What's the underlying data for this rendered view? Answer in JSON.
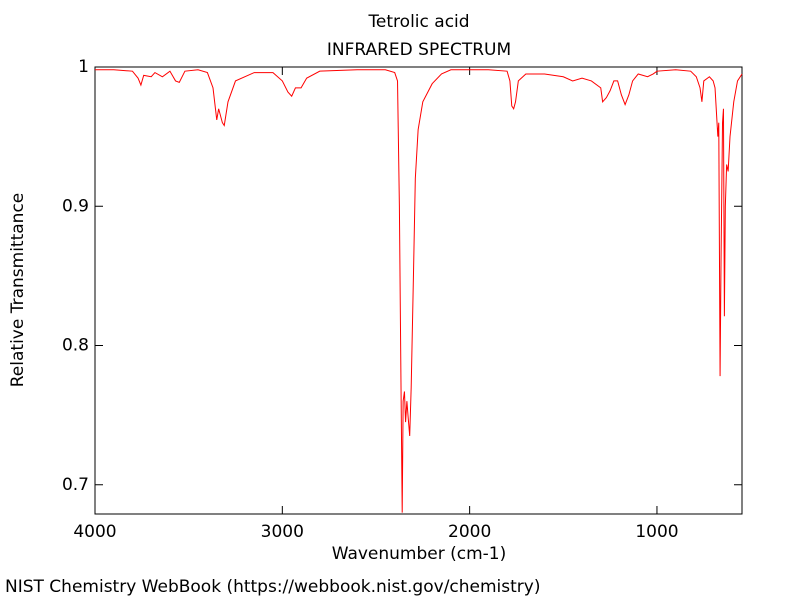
{
  "chart_data": {
    "type": "line",
    "title": "Tetrolic acid",
    "subtitle": "INFRARED SPECTRUM",
    "x_label": "Wavenumber (cm-1)",
    "y_label": "Relative Transmittance",
    "credit": "NIST Chemistry WebBook (https://webbook.nist.gov/chemistry)",
    "xlim": [
      4000,
      546
    ],
    "ylim": [
      0.679,
      1
    ],
    "xticks": [
      4000,
      3000,
      2000,
      1000
    ],
    "yticks": [
      0.7,
      0.8,
      0.9,
      1
    ],
    "x": [
      4000,
      3900,
      3800,
      3770,
      3755,
      3740,
      3700,
      3680,
      3640,
      3600,
      3570,
      3550,
      3520,
      3450,
      3400,
      3370,
      3350,
      3340,
      3320,
      3310,
      3290,
      3250,
      3150,
      3050,
      3000,
      2970,
      2950,
      2930,
      2900,
      2870,
      2800,
      2600,
      2450,
      2400,
      2385,
      2375,
      2367,
      2360,
      2355,
      2348,
      2342,
      2335,
      2328,
      2320,
      2312,
      2300,
      2290,
      2275,
      2250,
      2200,
      2150,
      2100,
      1900,
      1800,
      1785,
      1775,
      1765,
      1755,
      1740,
      1700,
      1600,
      1500,
      1450,
      1400,
      1350,
      1300,
      1290,
      1270,
      1250,
      1230,
      1210,
      1190,
      1170,
      1150,
      1130,
      1100,
      1050,
      1020,
      1000,
      900,
      820,
      790,
      770,
      760,
      750,
      720,
      700,
      690,
      675,
      670,
      663,
      658,
      650,
      645,
      640,
      635,
      628,
      620,
      610,
      590,
      570,
      546
    ],
    "series": [
      {
        "name": "Tetrolic acid",
        "color": "#ff0000",
        "values": [
          0.998,
          0.998,
          0.997,
          0.992,
          0.987,
          0.994,
          0.993,
          0.996,
          0.993,
          0.997,
          0.99,
          0.989,
          0.997,
          0.998,
          0.996,
          0.985,
          0.962,
          0.97,
          0.96,
          0.958,
          0.975,
          0.99,
          0.996,
          0.996,
          0.99,
          0.982,
          0.979,
          0.985,
          0.985,
          0.992,
          0.997,
          0.998,
          0.998,
          0.996,
          0.99,
          0.9,
          0.78,
          0.68,
          0.76,
          0.767,
          0.745,
          0.76,
          0.748,
          0.735,
          0.77,
          0.85,
          0.92,
          0.955,
          0.975,
          0.988,
          0.995,
          0.998,
          0.998,
          0.997,
          0.99,
          0.972,
          0.97,
          0.975,
          0.99,
          0.995,
          0.995,
          0.993,
          0.99,
          0.992,
          0.99,
          0.985,
          0.975,
          0.978,
          0.983,
          0.99,
          0.99,
          0.98,
          0.973,
          0.98,
          0.99,
          0.995,
          0.993,
          0.995,
          0.997,
          0.998,
          0.997,
          0.993,
          0.985,
          0.975,
          0.99,
          0.993,
          0.99,
          0.985,
          0.95,
          0.96,
          0.778,
          0.86,
          0.96,
          0.97,
          0.821,
          0.9,
          0.93,
          0.925,
          0.95,
          0.975,
          0.99,
          0.995
        ]
      }
    ]
  }
}
